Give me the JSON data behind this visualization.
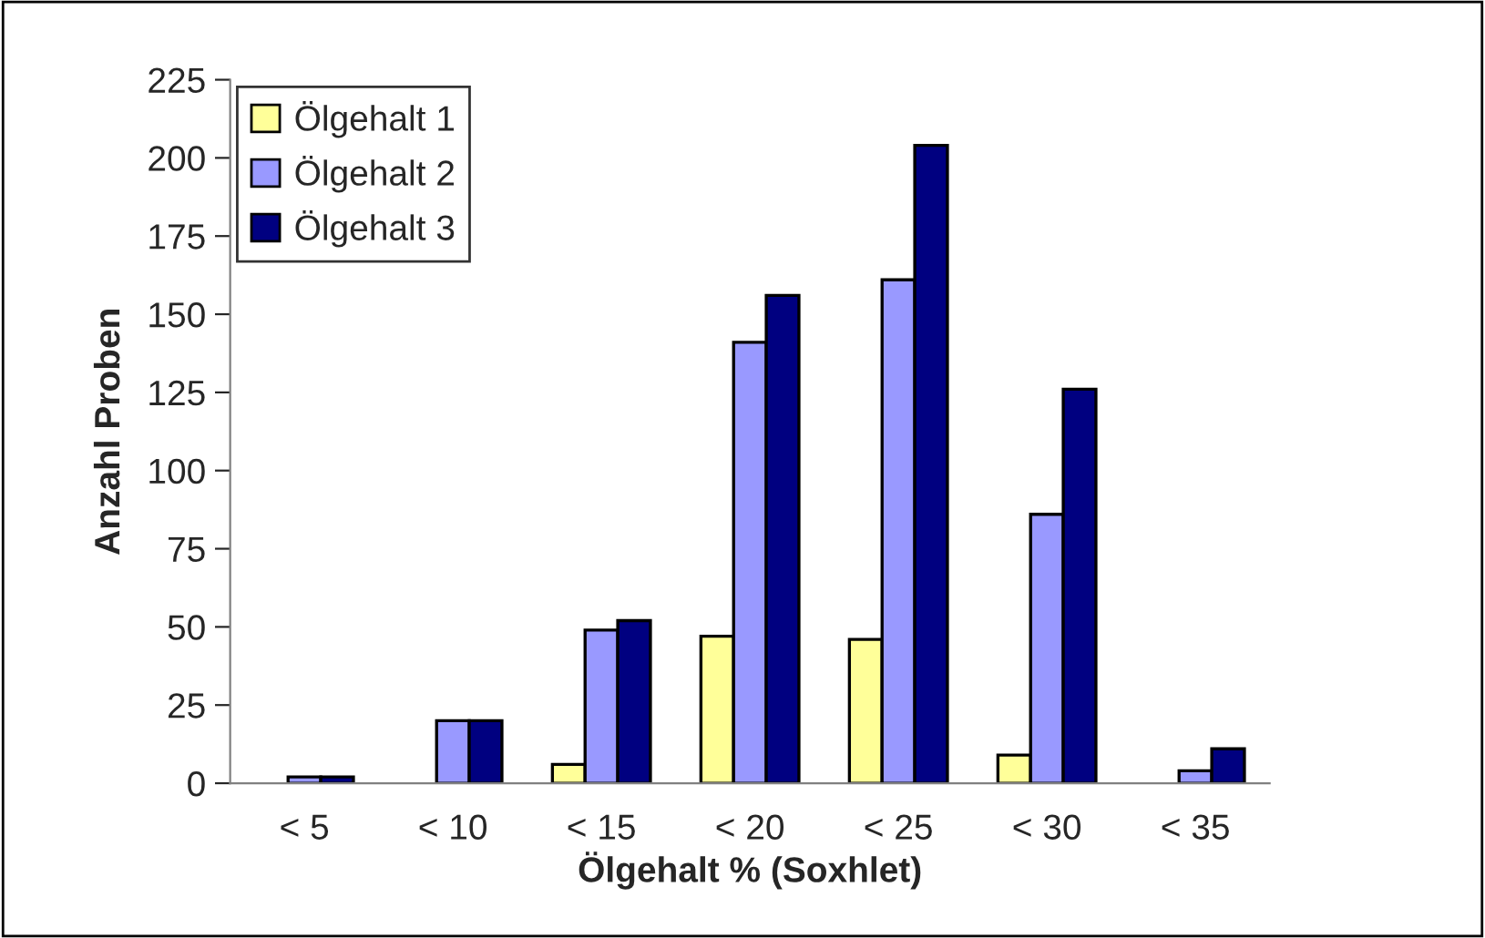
{
  "chart_data": {
    "type": "bar",
    "xlabel": "Ölgehalt % (Soxhlet)",
    "ylabel": "Anzahl Proben",
    "categories": [
      "< 5",
      "< 10",
      "< 15",
      "< 20",
      "< 25",
      "< 30",
      "< 35"
    ],
    "series": [
      {
        "name": "Ölgehalt 1",
        "color": "#ffff99",
        "values": [
          0,
          0,
          6,
          47,
          46,
          9,
          0
        ]
      },
      {
        "name": "Ölgehalt 2",
        "color": "#9999ff",
        "values": [
          2,
          20,
          49,
          141,
          161,
          86,
          4
        ]
      },
      {
        "name": "Ölgehalt 3",
        "color": "#000080",
        "values": [
          2,
          20,
          52,
          156,
          204,
          126,
          11
        ]
      }
    ],
    "ylim": [
      0,
      225
    ],
    "yticks": [
      0,
      25,
      50,
      75,
      100,
      125,
      150,
      175,
      200,
      225
    ],
    "grid": false,
    "legend": "top left"
  }
}
